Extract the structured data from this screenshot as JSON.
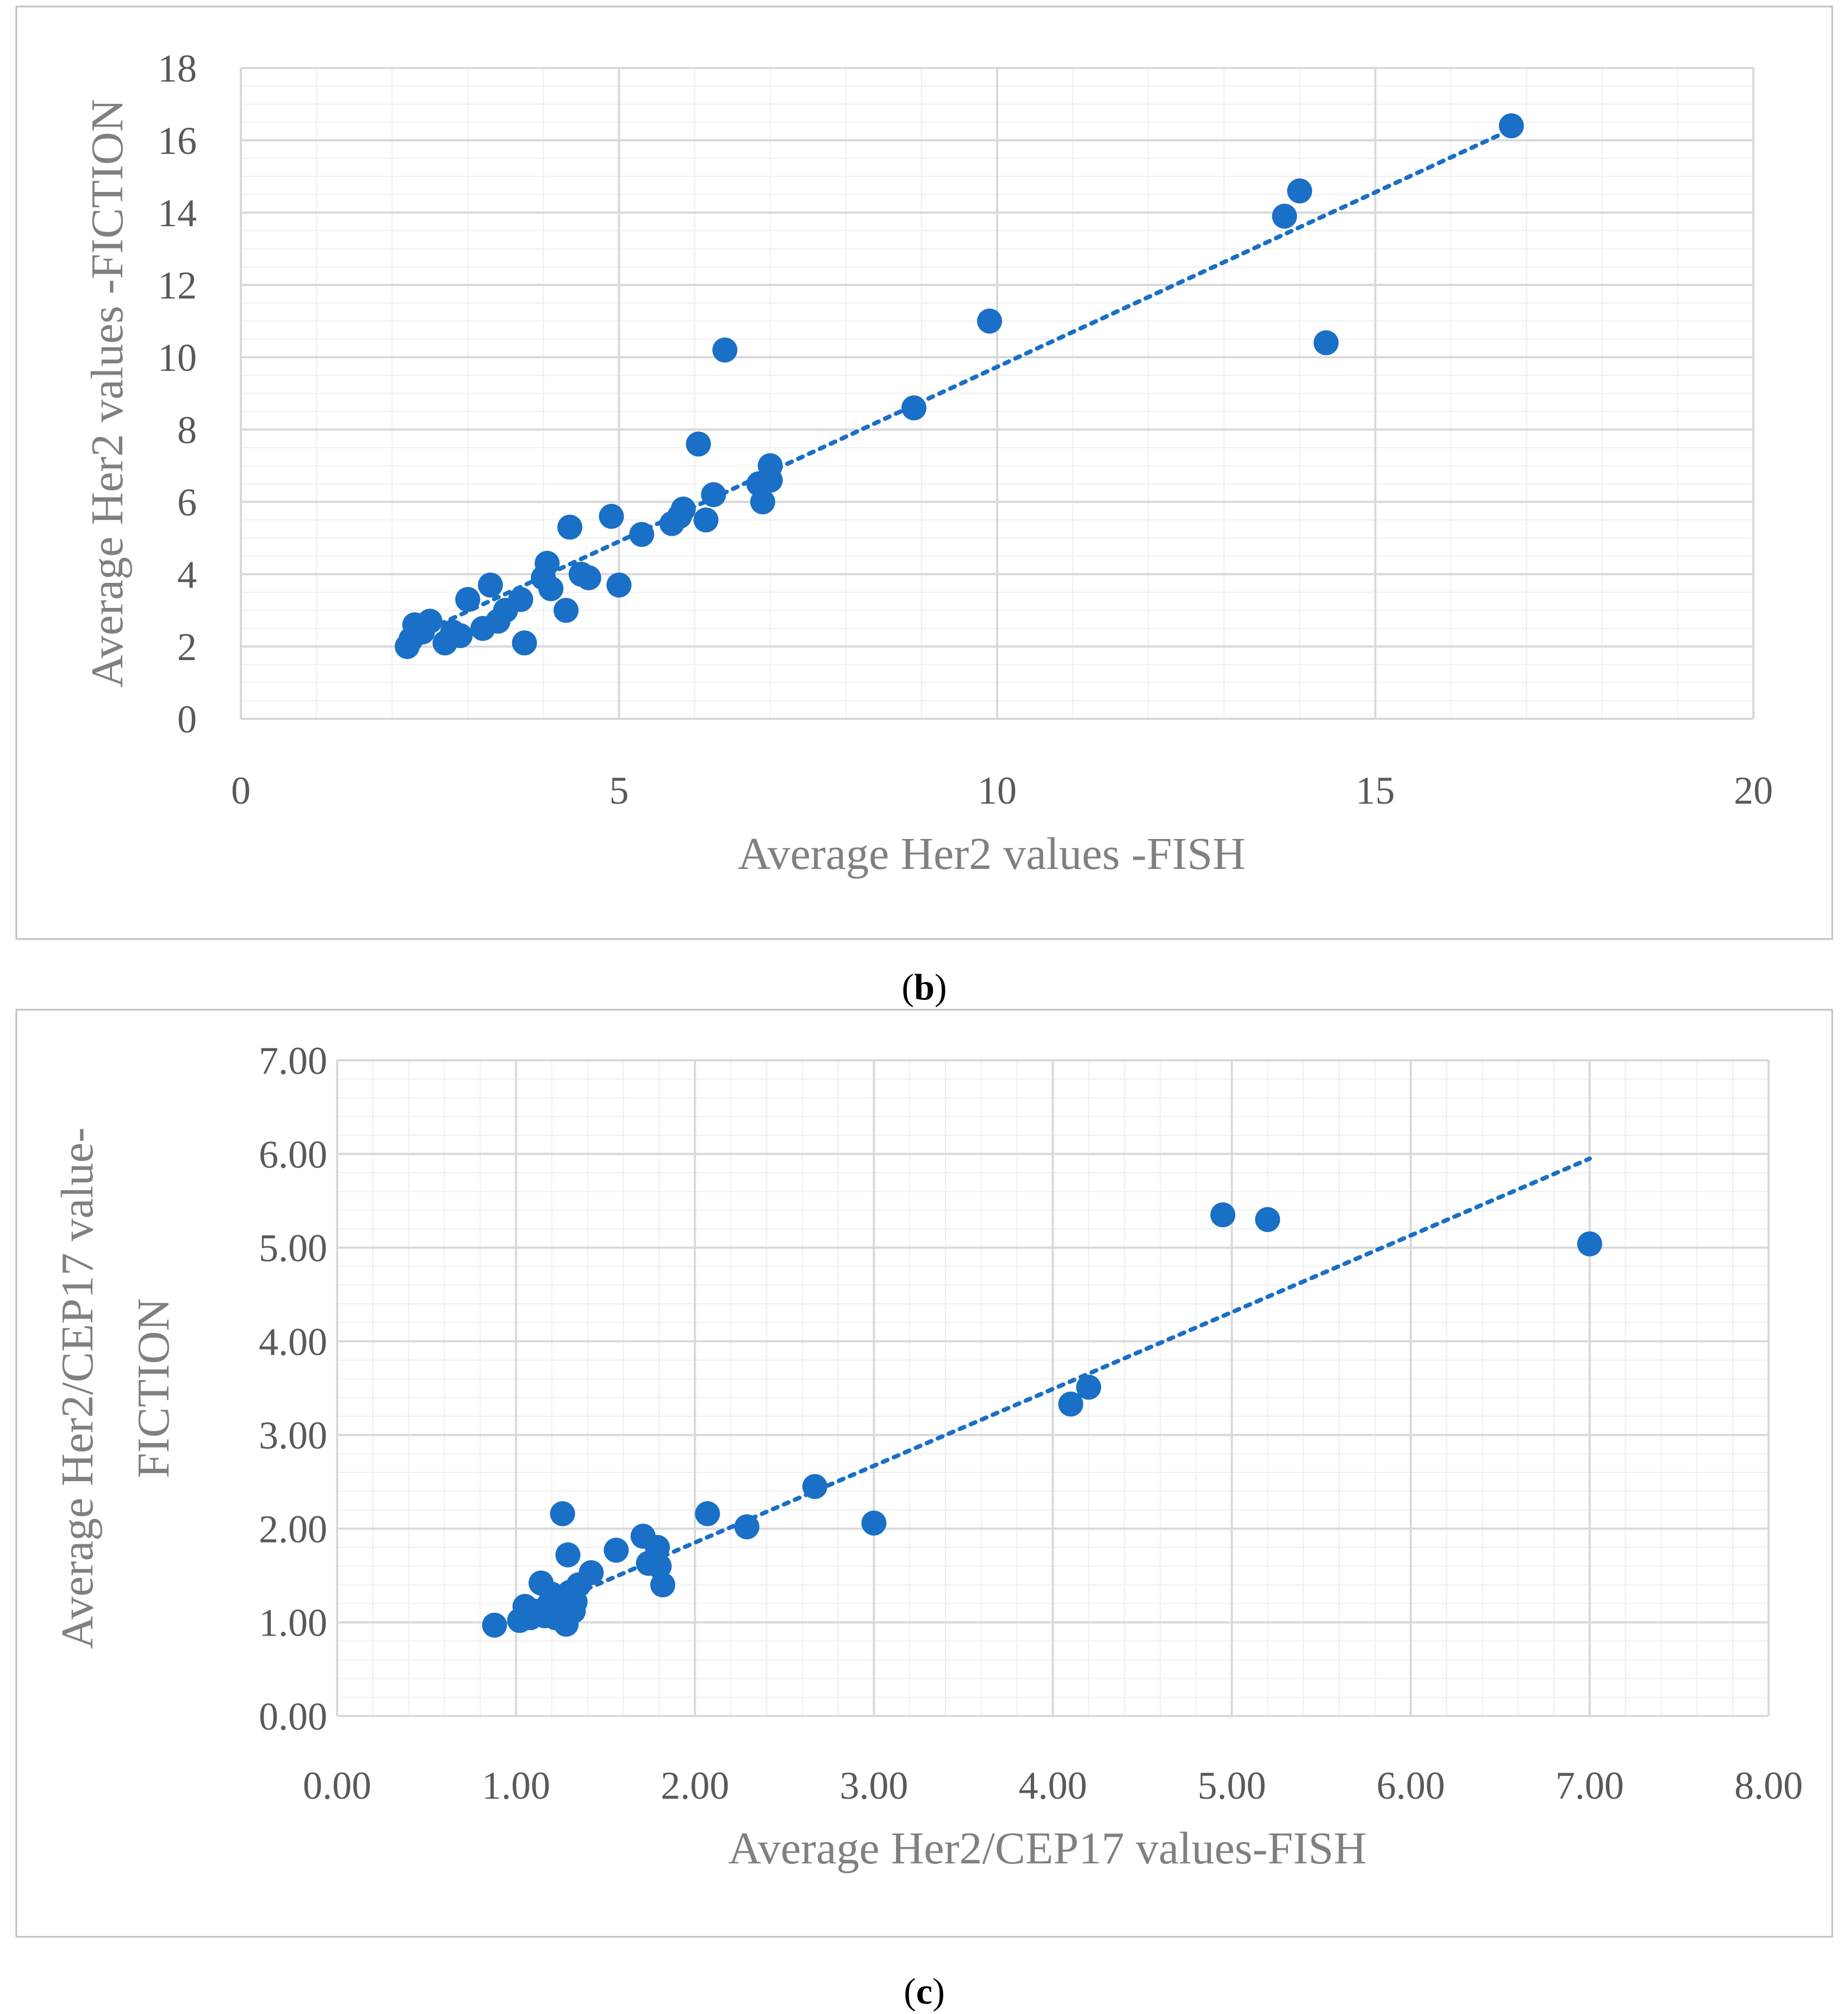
{
  "chart_data": [
    {
      "id": "b",
      "type": "scatter",
      "panel_label": "(b)",
      "panel_label_letter": "b",
      "xlabel": "Average Her2 values -FISH",
      "ylabel": "Average Her2 values -FICTION",
      "xlim": [
        0,
        20
      ],
      "ylim": [
        0,
        18
      ],
      "xticks": [
        0,
        5,
        10,
        15,
        20
      ],
      "yticks": [
        0,
        2,
        4,
        6,
        8,
        10,
        12,
        14,
        16,
        18
      ],
      "x_minor_step": 1,
      "y_minor_step": 0.5,
      "tick_decimals": 0,
      "trendline": {
        "style": "dotted",
        "from": [
          2.2,
          2.2
        ],
        "to": [
          16.8,
          16.3
        ]
      },
      "points": [
        [
          2.2,
          2.0
        ],
        [
          2.25,
          2.2
        ],
        [
          2.3,
          2.6
        ],
        [
          2.4,
          2.4
        ],
        [
          2.5,
          2.7
        ],
        [
          2.7,
          2.1
        ],
        [
          2.8,
          2.4
        ],
        [
          2.9,
          2.3
        ],
        [
          3.0,
          3.3
        ],
        [
          3.2,
          2.5
        ],
        [
          3.3,
          3.7
        ],
        [
          3.4,
          2.7
        ],
        [
          3.5,
          3.0
        ],
        [
          3.7,
          3.3
        ],
        [
          3.75,
          2.1
        ],
        [
          4.0,
          3.9
        ],
        [
          4.05,
          4.3
        ],
        [
          4.1,
          3.6
        ],
        [
          4.3,
          3.0
        ],
        [
          4.35,
          5.3
        ],
        [
          4.5,
          4.0
        ],
        [
          4.6,
          3.9
        ],
        [
          4.9,
          5.6
        ],
        [
          5.0,
          3.7
        ],
        [
          5.3,
          5.1
        ],
        [
          5.7,
          5.4
        ],
        [
          5.8,
          5.6
        ],
        [
          5.85,
          5.8
        ],
        [
          6.05,
          7.6
        ],
        [
          6.15,
          5.5
        ],
        [
          6.25,
          6.2
        ],
        [
          6.4,
          10.2
        ],
        [
          6.85,
          6.5
        ],
        [
          6.9,
          6.0
        ],
        [
          7.0,
          6.6
        ],
        [
          7.0,
          7.0
        ],
        [
          8.9,
          8.6
        ],
        [
          9.9,
          11.0
        ],
        [
          13.8,
          13.9
        ],
        [
          14.0,
          14.6
        ],
        [
          14.35,
          10.4
        ],
        [
          16.8,
          16.4
        ]
      ]
    },
    {
      "id": "c",
      "type": "scatter",
      "panel_label": "(c)",
      "panel_label_letter": "c",
      "xlabel": "Average Her2/CEP17 values-FISH",
      "ylabel": "Average Her2/CEP17 value-FICTION",
      "ylabel_lines": [
        "Average Her2/CEP17 value-",
        "FICTION"
      ],
      "xlim": [
        0,
        8
      ],
      "ylim": [
        0,
        7
      ],
      "xticks": [
        0,
        1,
        2,
        3,
        4,
        5,
        6,
        7,
        8
      ],
      "yticks": [
        0,
        1,
        2,
        3,
        4,
        5,
        6,
        7
      ],
      "x_minor_step": 0.2,
      "y_minor_step": 0.2,
      "tick_decimals": 2,
      "trendline": {
        "style": "dotted",
        "from": [
          0.9,
          0.95
        ],
        "to": [
          7.0,
          5.95
        ]
      },
      "points": [
        [
          0.88,
          0.97
        ],
        [
          1.02,
          1.02
        ],
        [
          1.05,
          1.17
        ],
        [
          1.08,
          1.05
        ],
        [
          1.1,
          1.12
        ],
        [
          1.14,
          1.42
        ],
        [
          1.16,
          1.07
        ],
        [
          1.18,
          1.18
        ],
        [
          1.2,
          1.3
        ],
        [
          1.22,
          1.05
        ],
        [
          1.25,
          1.2
        ],
        [
          1.26,
          2.16
        ],
        [
          1.28,
          0.98
        ],
        [
          1.29,
          1.72
        ],
        [
          1.3,
          1.32
        ],
        [
          1.32,
          1.12
        ],
        [
          1.33,
          1.22
        ],
        [
          1.35,
          1.4
        ],
        [
          1.42,
          1.53
        ],
        [
          1.56,
          1.77
        ],
        [
          1.71,
          1.92
        ],
        [
          1.74,
          1.63
        ],
        [
          1.79,
          1.8
        ],
        [
          1.8,
          1.6
        ],
        [
          1.82,
          1.4
        ],
        [
          2.07,
          2.16
        ],
        [
          2.29,
          2.02
        ],
        [
          2.67,
          2.45
        ],
        [
          3.0,
          2.06
        ],
        [
          4.1,
          3.33
        ],
        [
          4.2,
          3.51
        ],
        [
          4.95,
          5.35
        ],
        [
          5.2,
          5.3
        ],
        [
          7.0,
          5.04
        ]
      ]
    }
  ]
}
